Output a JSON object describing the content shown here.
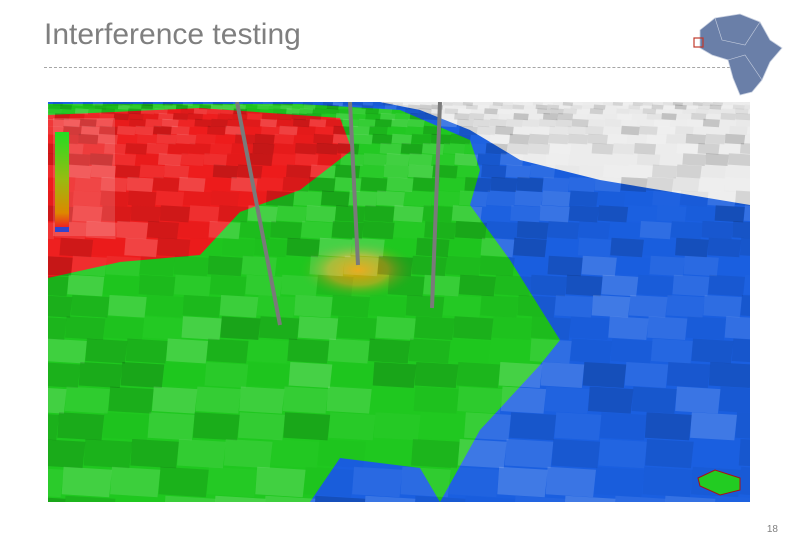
{
  "header": {
    "title": "Interference testing"
  },
  "footer": {
    "page_number": 18
  }
}
